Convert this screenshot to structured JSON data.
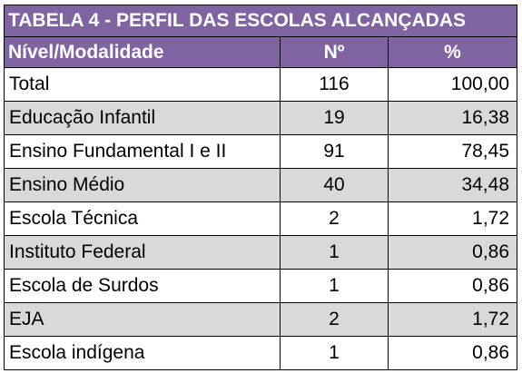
{
  "table": {
    "title": "TABELA 4 - PERFIL DAS ESCOLAS ALCANÇADAS",
    "headers": [
      "Nível/Modalidade",
      "Nº",
      "%"
    ],
    "colors": {
      "header_bg": "#8064a2",
      "header_text": "#ffffff",
      "shade_bg": "#d9d9d9"
    },
    "rows": [
      {
        "name": "Total",
        "count": "116",
        "pct": "100,00"
      },
      {
        "name": "Educação Infantil",
        "count": "19",
        "pct": "16,38"
      },
      {
        "name": "Ensino Fundamental I e II",
        "count": "91",
        "pct": "78,45"
      },
      {
        "name": "Ensino Médio",
        "count": "40",
        "pct": "34,48"
      },
      {
        "name": "Escola Técnica",
        "count": "2",
        "pct": "1,72"
      },
      {
        "name": "Instituto Federal",
        "count": "1",
        "pct": "0,86"
      },
      {
        "name": "Escola de Surdos",
        "count": "1",
        "pct": "0,86"
      },
      {
        "name": "EJA",
        "count": "2",
        "pct": "1,72"
      },
      {
        "name": "Escola indígena",
        "count": "1",
        "pct": "0,86"
      }
    ]
  }
}
